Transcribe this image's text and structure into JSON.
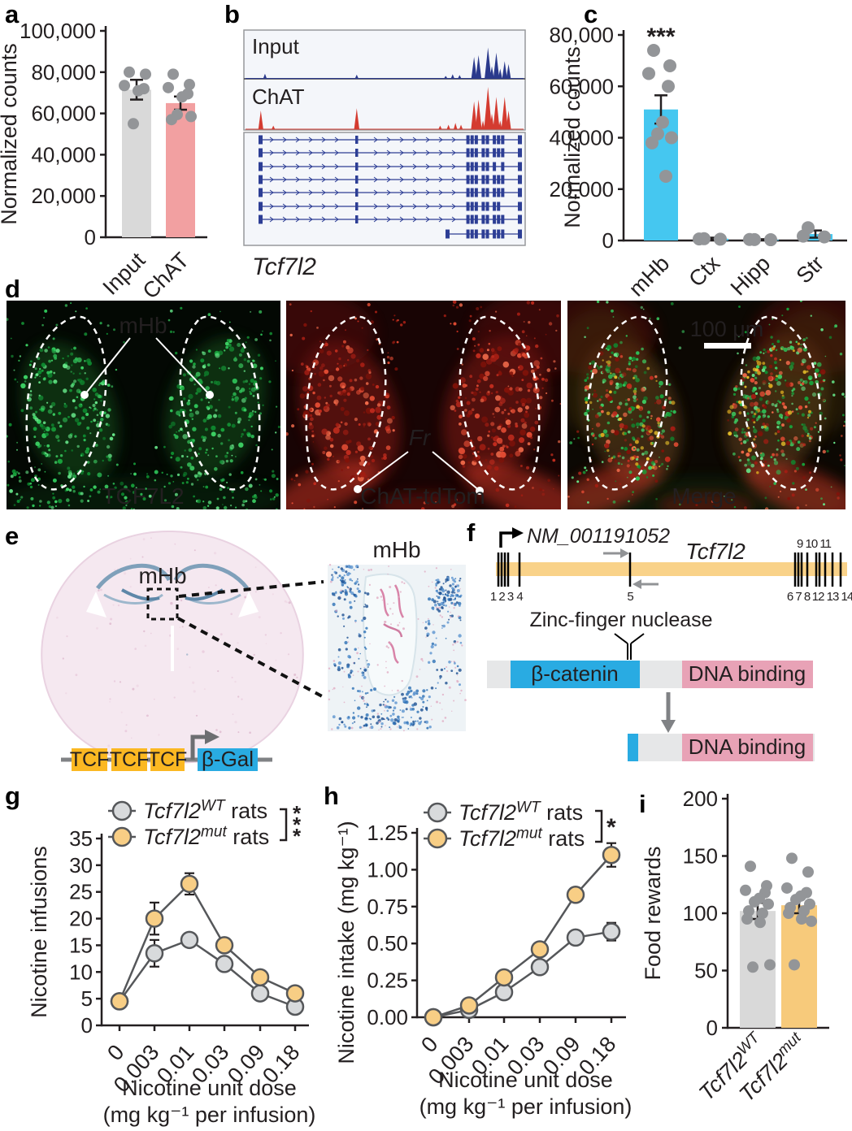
{
  "panels": {
    "a": {
      "letter": "a"
    },
    "b": {
      "letter": "b",
      "gene_label": "Tcf7l2"
    },
    "c": {
      "letter": "c"
    },
    "d": {
      "letter": "d",
      "images": [
        {
          "channel_label": "TCF7L2",
          "label_color": "#3bb54a",
          "region_label": "mHb"
        },
        {
          "channel_label": "ChAT-tdTom",
          "label_color": "#f16a22",
          "region_label": "Fr"
        },
        {
          "channel_label": "Merge",
          "label_color": "#f2cd1d",
          "scale_bar_label": "100 μm"
        }
      ]
    },
    "e": {
      "letter": "e",
      "brain_label": "mHb",
      "inset_label": "mHb",
      "construct": {
        "tcf_boxes": [
          "TCF",
          "TCF",
          "TCF"
        ],
        "reporter": "β-Gal",
        "tcf_color": "#fbb822",
        "reporter_color": "#29abe2"
      }
    },
    "f": {
      "letter": "f",
      "accession": "NM_001191052",
      "gene": "Tcf7l2",
      "exon_labels_below": [
        "1 2 3",
        "4",
        "5",
        "6 7 8",
        "12 13 14"
      ],
      "exon_labels_above": "9 10 11",
      "nuclease_label": "Zinc-finger nuclease",
      "gene_bar_color": "#f9d289",
      "protein_full_domains": [
        {
          "label": "β-catenin",
          "color": "#29abe2"
        },
        {
          "label": "DNA binding",
          "color": "#e8a2b6"
        }
      ],
      "protein_truncated_domain": {
        "label": "DNA binding",
        "color": "#e8a2b6"
      }
    },
    "g": {
      "letter": "g"
    },
    "h": {
      "letter": "h"
    },
    "i": {
      "letter": "i"
    }
  },
  "legend": {
    "wt": {
      "gene": "Tcf7l2",
      "sup": "WT",
      "suffix": " rats",
      "marker_color": "#d8dadc"
    },
    "mut": {
      "gene": "Tcf7l2",
      "sup": "mut",
      "suffix": " rats",
      "marker_color": "#f8ce85"
    }
  },
  "chart_data": [
    {
      "id": "a",
      "type": "bar",
      "ylabel": "Normalized counts",
      "ylim": [
        0,
        100000
      ],
      "yticks": [
        0,
        20000,
        40000,
        60000,
        80000,
        100000
      ],
      "ytick_labels": [
        "0",
        "20,000",
        "40,000",
        "60,000",
        "80,000",
        "100,000"
      ],
      "categories": [
        "Input",
        "ChAT"
      ],
      "values": [
        71500,
        65000
      ],
      "errors": [
        4800,
        3200
      ],
      "bar_colors": [
        "#d9d9d9",
        "#f2a0a1"
      ],
      "points": [
        [
          80000,
          79000,
          73500,
          72000,
          71000,
          55000
        ],
        [
          79000,
          74000,
          72500,
          69500,
          68000,
          59500,
          58500,
          57000
        ]
      ]
    },
    {
      "id": "b",
      "type": "genome-browser",
      "gene_label": "Tcf7l2",
      "transcript_count": 8,
      "tracks": [
        {
          "name": "Input",
          "color": "#2b3a8c",
          "peaks": [
            [
              0.07,
              0.1
            ],
            [
              0.4,
              0.08
            ],
            [
              0.72,
              0.05
            ],
            [
              0.745,
              0.09
            ],
            [
              0.77,
              0.07
            ],
            [
              0.822,
              0.5
            ],
            [
              0.838,
              0.54
            ],
            [
              0.872,
              0.72
            ],
            [
              0.886,
              0.28
            ],
            [
              0.902,
              0.6
            ],
            [
              0.916,
              0.22
            ],
            [
              0.932,
              0.4
            ],
            [
              0.946,
              0.33
            ]
          ]
        },
        {
          "name": "ChAT",
          "color": "#d43b30",
          "peaks": [
            [
              0.055,
              0.4
            ],
            [
              0.1,
              0.07
            ],
            [
              0.4,
              0.45
            ],
            [
              0.7,
              0.07
            ],
            [
              0.73,
              0.09
            ],
            [
              0.755,
              0.13
            ],
            [
              0.775,
              0.09
            ],
            [
              0.822,
              0.6
            ],
            [
              0.838,
              0.64
            ],
            [
              0.854,
              0.18
            ],
            [
              0.872,
              0.92
            ],
            [
              0.886,
              0.33
            ],
            [
              0.902,
              0.7
            ],
            [
              0.916,
              0.18
            ],
            [
              0.932,
              0.7
            ],
            [
              0.946,
              0.4
            ]
          ]
        }
      ]
    },
    {
      "id": "c",
      "type": "bar",
      "ylabel": "Normalized counts",
      "ylim": [
        0,
        80000
      ],
      "yticks": [
        0,
        20000,
        40000,
        60000,
        80000
      ],
      "ytick_labels": [
        "0",
        "20,000",
        "40,000",
        "60,000",
        "80,000"
      ],
      "categories": [
        "mHb",
        "Ctx",
        "Hipp",
        "Str"
      ],
      "values": [
        51000,
        700,
        300,
        2500
      ],
      "errors": [
        5500,
        400,
        200,
        1400
      ],
      "significance": "***",
      "bar_colors": [
        "#45c7f0",
        "#45c7f0",
        "#45c7f0",
        "#45c7f0"
      ],
      "points": [
        [
          74000,
          68000,
          65000,
          60000,
          46000,
          41500,
          40000,
          38000,
          25000
        ],
        [
          700,
          500,
          600
        ],
        [
          350,
          300,
          400
        ],
        [
          5000,
          1400,
          1700
        ]
      ]
    },
    {
      "id": "g",
      "type": "line",
      "ylabel": "Nicotine infusions",
      "xlabel_lines": [
        "Nicotine unit dose",
        "(mg kg⁻¹ per infusion)"
      ],
      "ylim": [
        0,
        35
      ],
      "yticks": [
        0,
        5,
        10,
        15,
        20,
        25,
        30,
        35
      ],
      "ytick_labels": [
        "0",
        "5",
        "10",
        "15",
        "20",
        "25",
        "30",
        "35"
      ],
      "categories": [
        "0",
        "0.003",
        "0.01",
        "0.03",
        "0.09",
        "0.18"
      ],
      "significance": "***",
      "series": [
        {
          "name": "wt",
          "color": "#d8dadc",
          "values": [
            4.5,
            13.5,
            16,
            11.5,
            6,
            3.5
          ],
          "errors": [
            0.6,
            2.5,
            1.2,
            1.2,
            0.8,
            0.8
          ]
        },
        {
          "name": "mut",
          "color": "#f8ce85",
          "values": [
            4.5,
            20,
            26.5,
            15,
            9,
            6
          ],
          "errors": [
            0.6,
            3,
            2,
            1.2,
            1,
            0.8
          ]
        }
      ]
    },
    {
      "id": "h",
      "type": "line",
      "ylabel": "Nicotine intake (mg kg⁻¹)",
      "xlabel_lines": [
        "Nicotine unit dose",
        "(mg kg⁻¹ per infusion)"
      ],
      "ylim": [
        0,
        1.25
      ],
      "yticks": [
        0,
        0.25,
        0.5,
        0.75,
        1,
        1.25
      ],
      "ytick_labels": [
        "0.00",
        "0.25",
        "0.50",
        "0.75",
        "1.00",
        "1.25"
      ],
      "categories": [
        "0",
        "0.003",
        "0.01",
        "0.03",
        "0.09",
        "0.18"
      ],
      "significance": "*",
      "series": [
        {
          "name": "wt",
          "color": "#d8dadc",
          "values": [
            0,
            0.05,
            0.17,
            0.34,
            0.54,
            0.58
          ],
          "errors": [
            0.01,
            0.015,
            0.02,
            0.03,
            0.035,
            0.06
          ]
        },
        {
          "name": "mut",
          "color": "#f8ce85",
          "values": [
            0,
            0.08,
            0.27,
            0.46,
            0.83,
            1.1
          ],
          "errors": [
            0.01,
            0.015,
            0.025,
            0.035,
            0.045,
            0.08
          ]
        }
      ]
    },
    {
      "id": "i",
      "type": "bar",
      "ylabel": "Food rewards",
      "ylim": [
        0,
        200
      ],
      "yticks": [
        0,
        50,
        100,
        150,
        200
      ],
      "ytick_labels": [
        "0",
        "50",
        "100",
        "150",
        "200"
      ],
      "categories_rich": [
        {
          "gene": "Tcf7l2",
          "sup": "WT"
        },
        {
          "gene": "Tcf7l2",
          "sup": "mut"
        }
      ],
      "values": [
        102,
        107
      ],
      "errors": [
        7,
        7
      ],
      "bar_colors": [
        "#d9d9d9",
        "#f7ca7b"
      ],
      "points": [
        [
          141,
          124,
          120,
          118,
          113,
          110,
          108,
          102,
          100,
          95,
          92,
          55,
          53
        ],
        [
          148,
          136,
          122,
          118,
          115,
          112,
          108,
          105,
          102,
          100,
          95,
          93,
          55
        ]
      ]
    }
  ]
}
